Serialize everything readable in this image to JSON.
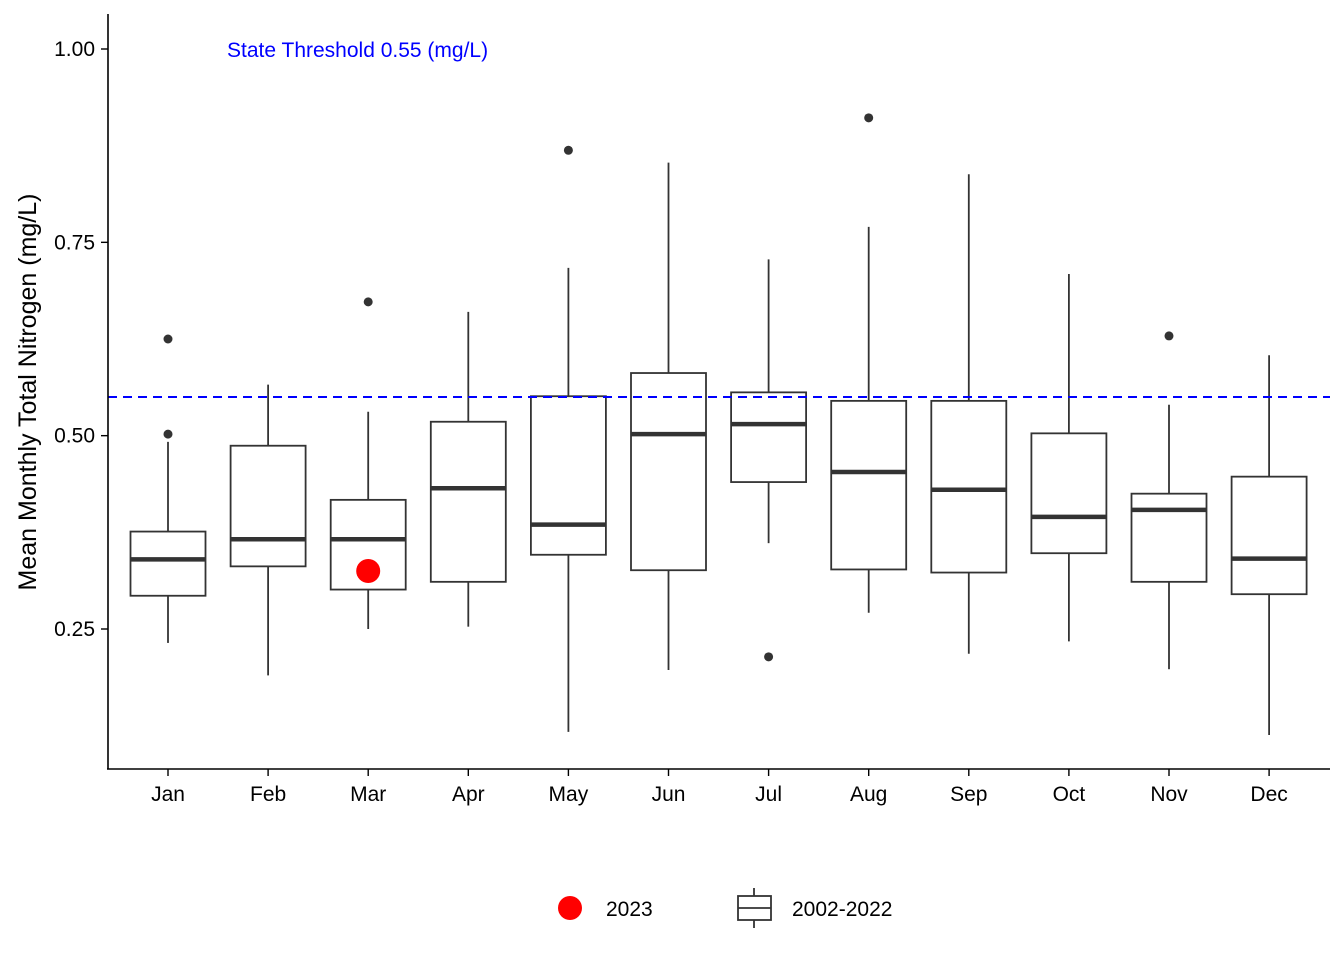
{
  "chart_data": {
    "type": "box",
    "categories": [
      "Jan",
      "Feb",
      "Mar",
      "Apr",
      "May",
      "Jun",
      "Jul",
      "Aug",
      "Sep",
      "Oct",
      "Nov",
      "Dec"
    ],
    "ylabel": "Mean Monthly Total Nitrogen (mg/L)",
    "xlabel": "",
    "ylim": [
      0.07,
      1.05
    ],
    "yticks": [
      0.25,
      0.5,
      0.75,
      1.0
    ],
    "ytick_labels": [
      "0.25",
      "0.50",
      "0.75",
      "1.00"
    ],
    "grid": false,
    "legend_position": "bottom",
    "threshold": {
      "value": 0.55,
      "label": "State Threshold 0.55 (mg/L)",
      "color": "#0000ff",
      "style": "dashed"
    },
    "series": [
      {
        "name": "2002-2022",
        "kind": "boxplot",
        "color": "#333333",
        "stats": [
          {
            "low": 0.232,
            "q1": 0.293,
            "median": 0.34,
            "q3": 0.376,
            "high": 0.492,
            "outliers": [
              0.502,
              0.625
            ]
          },
          {
            "low": 0.19,
            "q1": 0.331,
            "median": 0.366,
            "q3": 0.487,
            "high": 0.566,
            "outliers": []
          },
          {
            "low": 0.25,
            "q1": 0.301,
            "median": 0.366,
            "q3": 0.417,
            "high": 0.531,
            "outliers": [
              0.673
            ]
          },
          {
            "low": 0.253,
            "q1": 0.311,
            "median": 0.432,
            "q3": 0.518,
            "high": 0.66,
            "outliers": []
          },
          {
            "low": 0.117,
            "q1": 0.346,
            "median": 0.385,
            "q3": 0.551,
            "high": 0.717,
            "outliers": [
              0.869
            ]
          },
          {
            "low": 0.197,
            "q1": 0.326,
            "median": 0.502,
            "q3": 0.581,
            "high": 0.853,
            "outliers": []
          },
          {
            "low": 0.361,
            "q1": 0.44,
            "median": 0.515,
            "q3": 0.556,
            "high": 0.728,
            "outliers": [
              0.214
            ]
          },
          {
            "low": 0.271,
            "q1": 0.327,
            "median": 0.453,
            "q3": 0.545,
            "high": 0.77,
            "outliers": [
              0.911
            ]
          },
          {
            "low": 0.218,
            "q1": 0.323,
            "median": 0.43,
            "q3": 0.545,
            "high": 0.838,
            "outliers": []
          },
          {
            "low": 0.234,
            "q1": 0.348,
            "median": 0.395,
            "q3": 0.503,
            "high": 0.709,
            "outliers": []
          },
          {
            "low": 0.198,
            "q1": 0.311,
            "median": 0.404,
            "q3": 0.425,
            "high": 0.54,
            "outliers": [
              0.629
            ]
          },
          {
            "low": 0.113,
            "q1": 0.295,
            "median": 0.341,
            "q3": 0.447,
            "high": 0.604,
            "outliers": []
          }
        ]
      },
      {
        "name": "2023",
        "kind": "point",
        "color": "#ff0000",
        "points": [
          {
            "x": "Mar",
            "y": 0.325
          }
        ]
      }
    ]
  }
}
